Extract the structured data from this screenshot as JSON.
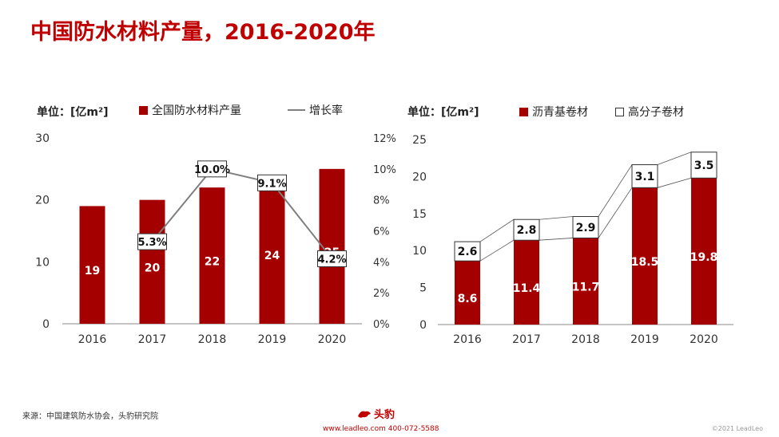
{
  "header": {
    "title": "中国防水材料产量，2016-2020年"
  },
  "left": {
    "unit_label": "单位：[亿m²]",
    "legend_bar": "全国防水材料产量",
    "legend_line": "增长率"
  },
  "right": {
    "unit_label": "单位：[亿m²]",
    "legend_a": "沥青基卷材",
    "legend_b": "高分子卷材"
  },
  "footer": {
    "source": "来源：中国建筑防水协会，头豹研究院",
    "logo": "头豹",
    "contact": "www.leadleo.com  400-072-5588",
    "copyright": "©2021 LeadLeo"
  },
  "colors": {
    "bar": "#a50000",
    "line": "#7f7f7f",
    "title": "#c00000"
  },
  "chart_data": [
    {
      "type": "bar",
      "categories": [
        "2016",
        "2017",
        "2018",
        "2019",
        "2020"
      ],
      "series": [
        {
          "name": "全国防水材料产量",
          "values": [
            19,
            20,
            22,
            24,
            25
          ],
          "axis": "left"
        },
        {
          "name": "增长率",
          "type": "line",
          "values": [
            null,
            5.3,
            10.0,
            9.1,
            4.2
          ],
          "labels": [
            "",
            "5.3%",
            "10.0%",
            "9.1%",
            "4.2%"
          ],
          "axis": "right"
        }
      ],
      "ylim": [
        0,
        30
      ],
      "yticks": [
        0,
        10,
        20,
        30
      ],
      "y2lim": [
        0,
        12
      ],
      "y2ticks": [
        "0%",
        "2%",
        "4%",
        "6%",
        "8%",
        "10%",
        "12%"
      ],
      "ylabel": "单位：[亿m²]"
    },
    {
      "type": "stacked-bar",
      "categories": [
        "2016",
        "2017",
        "2018",
        "2019",
        "2020"
      ],
      "series": [
        {
          "name": "沥青基卷材",
          "values": [
            8.6,
            11.4,
            11.7,
            18.5,
            19.8
          ]
        },
        {
          "name": "高分子卷材",
          "values": [
            2.6,
            2.8,
            2.9,
            3.1,
            3.5
          ]
        }
      ],
      "ylim": [
        0,
        25
      ],
      "yticks": [
        0,
        5,
        10,
        15,
        20,
        25
      ],
      "ylabel": "单位：[亿m²]"
    }
  ]
}
